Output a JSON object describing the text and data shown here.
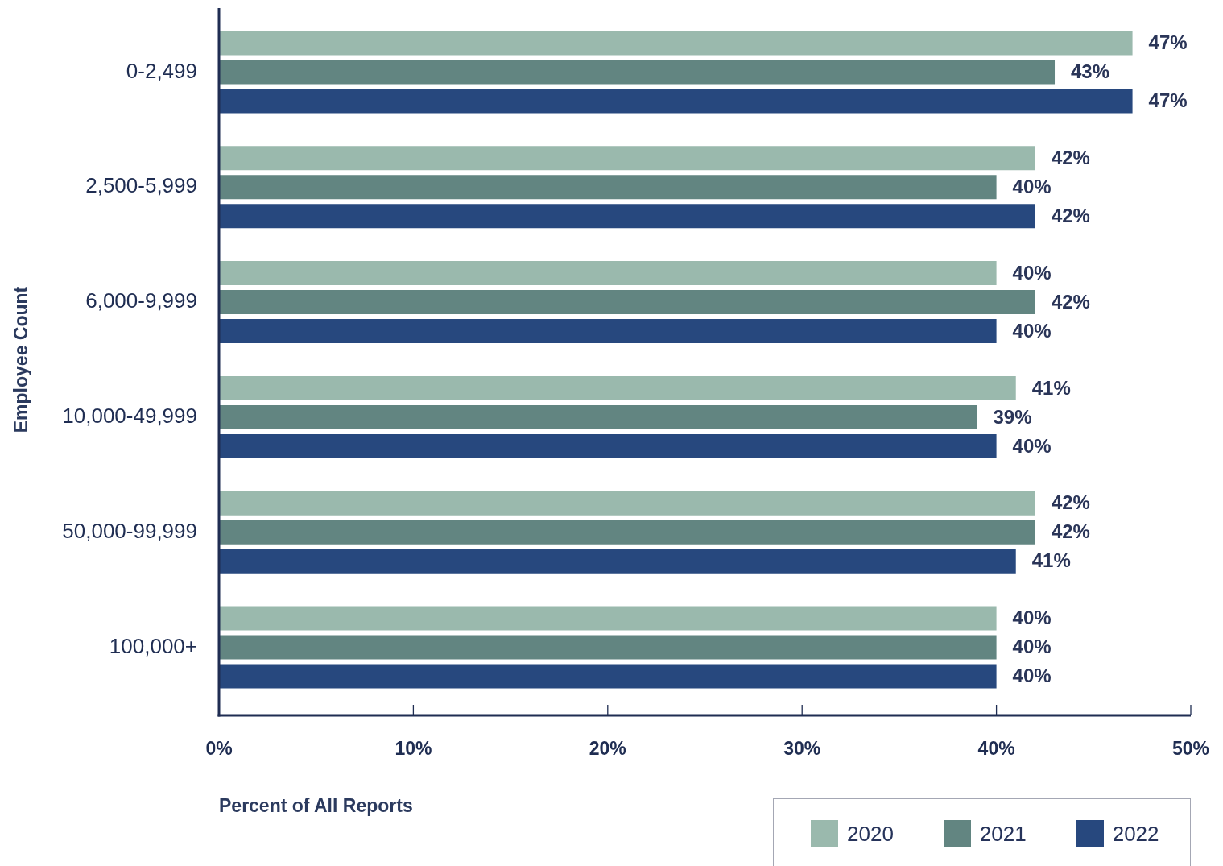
{
  "chart_data": {
    "type": "bar",
    "orientation": "horizontal",
    "xlabel": "Percent of All Reports",
    "ylabel": "Employee Count",
    "categories": [
      "0-2,499",
      "2,500-5,999",
      "6,000-9,999",
      "10,000-49,999",
      "50,000-99,999",
      "100,000+"
    ],
    "series": [
      {
        "name": "2020",
        "color": "#9ab9ad",
        "values": [
          47,
          42,
          40,
          41,
          42,
          40
        ],
        "value_labels": [
          "47%",
          "42%",
          "40%",
          "41%",
          "42%",
          "40%"
        ]
      },
      {
        "name": "2021",
        "color": "#628581",
        "values": [
          43,
          40,
          42,
          39,
          42,
          40
        ],
        "value_labels": [
          "43%",
          "40%",
          "42%",
          "39%",
          "42%",
          "40%"
        ]
      },
      {
        "name": "2022",
        "color": "#27487e",
        "values": [
          47,
          42,
          40,
          40,
          41,
          40
        ],
        "value_labels": [
          "47%",
          "42%",
          "40%",
          "40%",
          "41%",
          "40%"
        ]
      }
    ],
    "xlim": [
      0,
      50
    ],
    "xticks": [
      {
        "value": 0,
        "label": "0%"
      },
      {
        "value": 10,
        "label": "10%"
      },
      {
        "value": 20,
        "label": "20%"
      },
      {
        "value": 30,
        "label": "30%"
      },
      {
        "value": 40,
        "label": "40%"
      },
      {
        "value": 50,
        "label": "50%"
      }
    ],
    "legend": "bottom right"
  }
}
